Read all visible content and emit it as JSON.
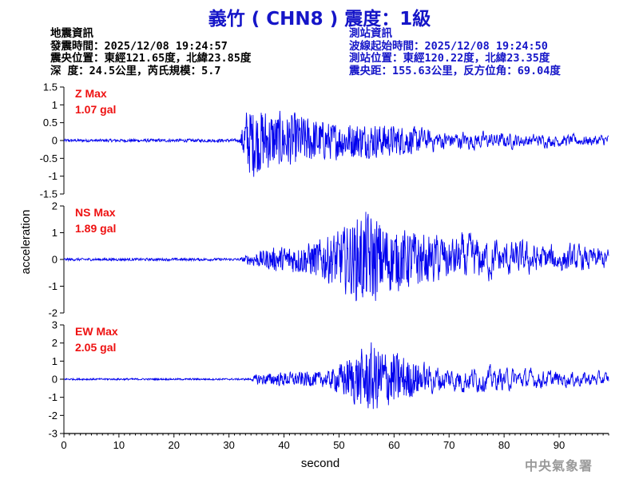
{
  "header": {
    "title": "義竹 ( CHN8 ) 震度：1級",
    "left_lines": [
      "地震資訊",
      "發震時間：2025/12/08 19:24:57",
      "震央位置：東經121.65度，北緯23.85度",
      "深  度：24.5公里，芮氏規模：5.7"
    ],
    "right_lines": [
      "測站資訊",
      "波線起始時間：2025/12/08 19:24:50",
      "測站位置：東經120.22度，北緯23.35度",
      "震央距：155.63公里，反方位角：69.04度"
    ]
  },
  "footer": {
    "agency": "中央氣象署"
  },
  "colors": {
    "title": "#1515c8",
    "trace": "#0000ee",
    "max_label": "#ee1111",
    "axis": "#000000"
  },
  "chart_data": {
    "type": "line",
    "xlabel": "second",
    "ylabel": "acceleration",
    "xlim": [
      0,
      99
    ],
    "x_ticks": [
      "0",
      "10",
      "20",
      "30",
      "40",
      "50",
      "60",
      "70",
      "80",
      "90"
    ],
    "panels": [
      {
        "name": "Z",
        "max_title": "Z Max",
        "max_value": "1.07 gal",
        "ylim": [
          -1.5,
          1.5
        ],
        "y_ticks": [
          "1.5",
          "1",
          "0.5",
          "0",
          "-0.5",
          "-1",
          "-1.5"
        ],
        "peak": 1.07,
        "envelope": [
          [
            0,
            0.04
          ],
          [
            32,
            0.05
          ],
          [
            33,
            0.9
          ],
          [
            34,
            1.07
          ],
          [
            38,
            0.85
          ],
          [
            42,
            0.8
          ],
          [
            48,
            0.55
          ],
          [
            56,
            0.5
          ],
          [
            62,
            0.42
          ],
          [
            70,
            0.3
          ],
          [
            78,
            0.25
          ],
          [
            85,
            0.2
          ],
          [
            92,
            0.18
          ],
          [
            99,
            0.18
          ]
        ]
      },
      {
        "name": "NS",
        "max_title": "NS Max",
        "max_value": "1.89 gal",
        "ylim": [
          -2,
          2
        ],
        "y_ticks": [
          "2",
          "1",
          "0",
          "-1",
          "-2"
        ],
        "peak": 1.89,
        "envelope": [
          [
            0,
            0.05
          ],
          [
            32,
            0.05
          ],
          [
            34,
            0.25
          ],
          [
            38,
            0.45
          ],
          [
            44,
            0.6
          ],
          [
            50,
            1.1
          ],
          [
            55,
            1.89
          ],
          [
            60,
            1.2
          ],
          [
            66,
            1.1
          ],
          [
            72,
            1.0
          ],
          [
            79,
            0.8
          ],
          [
            86,
            0.65
          ],
          [
            92,
            0.55
          ],
          [
            99,
            0.45
          ]
        ]
      },
      {
        "name": "EW",
        "max_title": "EW Max",
        "max_value": "2.05 gal",
        "ylim": [
          -3,
          3
        ],
        "y_ticks": [
          "3",
          "2",
          "1",
          "0",
          "-1",
          "-2",
          "-3"
        ],
        "peak": 2.05,
        "envelope": [
          [
            0,
            0.05
          ],
          [
            34,
            0.05
          ],
          [
            35,
            0.3
          ],
          [
            40,
            0.4
          ],
          [
            48,
            0.45
          ],
          [
            52,
            1.3
          ],
          [
            56,
            2.05
          ],
          [
            60,
            1.6
          ],
          [
            64,
            1.0
          ],
          [
            70,
            0.8
          ],
          [
            78,
            0.7
          ],
          [
            86,
            0.55
          ],
          [
            92,
            0.45
          ],
          [
            99,
            0.4
          ]
        ]
      }
    ]
  }
}
